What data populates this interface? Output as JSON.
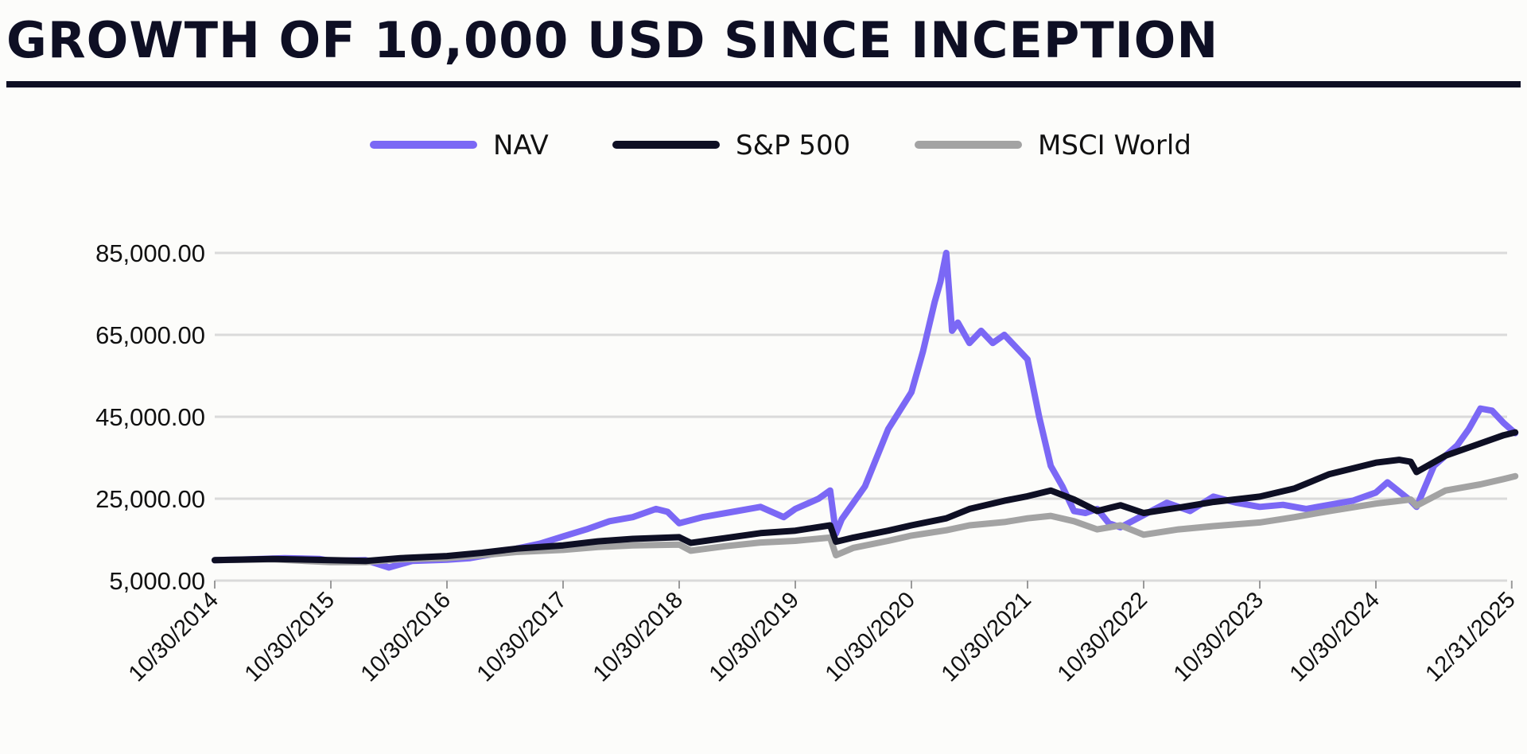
{
  "title": "GROWTH OF 10,000 USD SINCE INCEPTION",
  "colors": {
    "nav": "#7b68f5",
    "sp500": "#0e0f24",
    "msci": "#a3a3a3",
    "grid": "#dadada",
    "rule": "#0e0f24"
  },
  "chart_data": {
    "type": "line",
    "title": "GROWTH OF 10,000 USD SINCE INCEPTION",
    "xlabel": "",
    "ylabel": "",
    "ylim": [
      5000,
      85000
    ],
    "yticks": [
      "85,000.00",
      "65,000.00",
      "45,000.00",
      "25,000.00",
      "5,000.00"
    ],
    "ytick_values": [
      85000,
      65000,
      45000,
      25000,
      5000
    ],
    "x_tick_labels": [
      "10/30/2014",
      "10/30/2015",
      "10/30/2016",
      "10/30/2017",
      "10/30/2018",
      "10/30/2019",
      "10/30/2020",
      "10/30/2021",
      "10/30/2022",
      "10/30/2023",
      "10/30/2024",
      "12/31/2025"
    ],
    "x_tick_positions": [
      0,
      1,
      2,
      3,
      4,
      5,
      6,
      7,
      8,
      9,
      10,
      11.17
    ],
    "x_range": [
      0,
      11.2
    ],
    "legend": [
      "NAV",
      "S&P 500",
      "MSCI World"
    ],
    "legend_position": "top-center",
    "series": [
      {
        "name": "NAV",
        "x": [
          0,
          0.3,
          0.6,
          0.9,
          1.0,
          1.3,
          1.5,
          1.7,
          2.0,
          2.2,
          2.4,
          2.6,
          2.8,
          3.0,
          3.2,
          3.4,
          3.6,
          3.8,
          3.9,
          4.0,
          4.2,
          4.5,
          4.7,
          4.9,
          5.0,
          5.2,
          5.3,
          5.35,
          5.4,
          5.6,
          5.8,
          6.0,
          6.1,
          6.2,
          6.25,
          6.3,
          6.35,
          6.4,
          6.5,
          6.6,
          6.7,
          6.8,
          6.9,
          7.0,
          7.1,
          7.2,
          7.3,
          7.4,
          7.5,
          7.6,
          7.7,
          7.8,
          7.9,
          8.0,
          8.2,
          8.4,
          8.6,
          8.8,
          9.0,
          9.2,
          9.4,
          9.6,
          9.8,
          10.0,
          10.1,
          10.3,
          10.35,
          10.5,
          10.7,
          10.8,
          10.9,
          11.0,
          11.1,
          11.2
        ],
        "values": [
          10000,
          10200,
          10500,
          10300,
          9800,
          10000,
          8200,
          9800,
          10100,
          10500,
          11500,
          12800,
          14000,
          15800,
          17500,
          19500,
          20500,
          22500,
          21800,
          19000,
          20500,
          22000,
          23000,
          20500,
          22500,
          25000,
          27000,
          16500,
          20000,
          28000,
          42000,
          51000,
          61000,
          73000,
          78000,
          85000,
          66000,
          68000,
          63000,
          66000,
          63000,
          65000,
          62000,
          59000,
          45000,
          33000,
          28000,
          22000,
          21500,
          22500,
          19000,
          18000,
          19500,
          21000,
          24000,
          22000,
          25500,
          24000,
          23000,
          23500,
          22500,
          23500,
          24500,
          26500,
          29000,
          24500,
          23000,
          33000,
          38000,
          42000,
          47000,
          46500,
          43500,
          41000
        ]
      },
      {
        "name": "S&P 500",
        "x": [
          0,
          0.5,
          1.0,
          1.3,
          1.6,
          2.0,
          2.3,
          2.6,
          3.0,
          3.3,
          3.6,
          4.0,
          4.1,
          4.4,
          4.7,
          5.0,
          5.3,
          5.35,
          5.5,
          5.8,
          6.0,
          6.3,
          6.5,
          6.8,
          7.0,
          7.2,
          7.4,
          7.6,
          7.8,
          8.0,
          8.3,
          8.6,
          9.0,
          9.3,
          9.6,
          10.0,
          10.2,
          10.3,
          10.35,
          10.6,
          10.9,
          11.1,
          11.2
        ],
        "values": [
          10000,
          10300,
          10000,
          9800,
          10500,
          11000,
          11800,
          12800,
          13600,
          14600,
          15200,
          15600,
          14200,
          15400,
          16600,
          17200,
          18500,
          14500,
          15500,
          17200,
          18500,
          20200,
          22500,
          24500,
          25600,
          27000,
          24800,
          22000,
          23400,
          21500,
          22800,
          24200,
          25500,
          27500,
          31000,
          33800,
          34500,
          34000,
          31500,
          35500,
          38500,
          40500,
          41200
        ]
      },
      {
        "name": "MSCI World",
        "x": [
          0,
          0.5,
          1.0,
          1.3,
          1.6,
          2.0,
          2.3,
          2.6,
          3.0,
          3.3,
          3.6,
          4.0,
          4.1,
          4.4,
          4.7,
          5.0,
          5.3,
          5.35,
          5.5,
          5.8,
          6.0,
          6.3,
          6.5,
          6.8,
          7.0,
          7.2,
          7.4,
          7.6,
          7.8,
          8.0,
          8.3,
          8.6,
          9.0,
          9.3,
          9.6,
          10.0,
          10.3,
          10.35,
          10.6,
          10.9,
          11.1,
          11.2
        ],
        "values": [
          10000,
          10200,
          9500,
          9500,
          10200,
          10500,
          11200,
          12000,
          12500,
          13200,
          13600,
          13800,
          12300,
          13400,
          14300,
          14700,
          15500,
          11200,
          13000,
          14700,
          16000,
          17300,
          18500,
          19300,
          20200,
          20800,
          19500,
          17500,
          18500,
          16200,
          17500,
          18300,
          19200,
          20500,
          22000,
          23800,
          24800,
          23300,
          27000,
          28500,
          29800,
          30500
        ]
      }
    ]
  }
}
